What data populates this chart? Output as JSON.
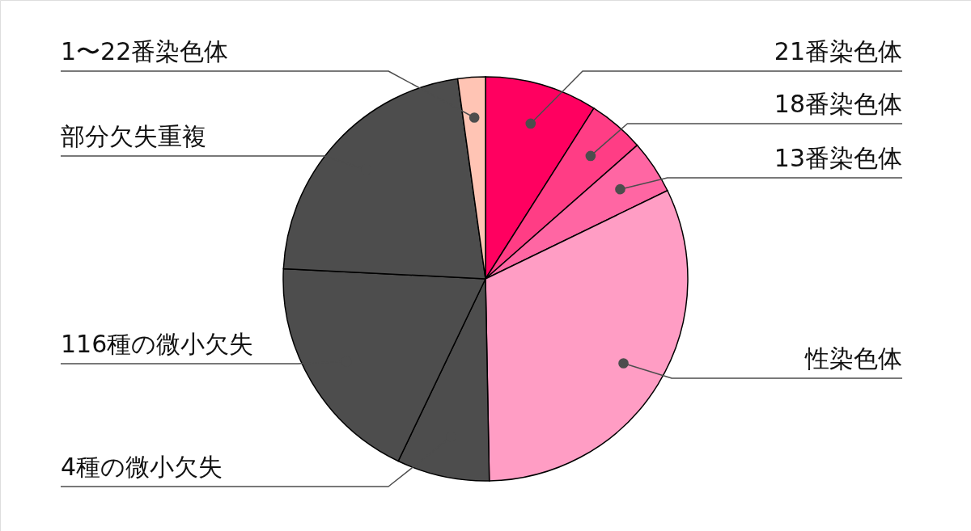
{
  "chart_data": {
    "type": "pie",
    "categories": [
      "21番染色体",
      "18番染色体",
      "13番染色体",
      "性染色体",
      "4種の微小欠失",
      "116種の微小欠失",
      "部分欠失重複",
      "1〜22番染色体"
    ],
    "values": [
      9.0,
      4.5,
      4.3,
      31.9,
      7.4,
      18.7,
      22.0,
      2.2
    ],
    "colors": [
      "#ff0060",
      "#ff3d85",
      "#ff66a3",
      "#ff9dc4",
      "#4d4d4d",
      "#4d4d4d",
      "#4d4d4d",
      "#ffc4b4"
    ]
  }
}
